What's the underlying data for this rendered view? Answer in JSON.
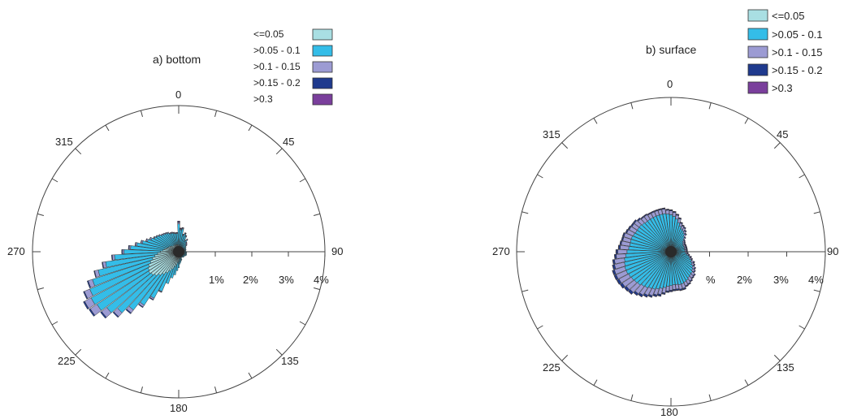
{
  "colors": {
    "c1": "#a9dfe3",
    "c2": "#34bde8",
    "c3": "#9c9bd3",
    "c4": "#1f3a8e",
    "c5": "#7a3f9c",
    "axis": "#444444",
    "center": "#2a2a2a"
  },
  "chart_data": [
    {
      "type": "polar-bar",
      "title": "a) bottom",
      "angle_labels": [
        "0",
        "45",
        "90",
        "135",
        "180",
        "225",
        "270",
        "315"
      ],
      "radial_labels": [
        "1%",
        "2%",
        "3%",
        "4%"
      ],
      "rmax_percent": 4,
      "bin_width_deg": 5,
      "legend": [
        {
          "label": "<=0.05",
          "color": "#a9dfe3"
        },
        {
          "label": ">0.05 - 0.1",
          "color": "#34bde8"
        },
        {
          "label": ">0.1 - 0.15",
          "color": "#9c9bd3"
        },
        {
          "label": ">0.15 - 0.2",
          "color": "#1f3a8e"
        },
        {
          "label": ">0.3",
          "color": "#7a3f9c"
        }
      ],
      "directions_deg": [
        0,
        5,
        10,
        15,
        20,
        25,
        30,
        35,
        40,
        45,
        50,
        55,
        60,
        65,
        70,
        75,
        80,
        85,
        90,
        95,
        100,
        105,
        110,
        115,
        120,
        125,
        130,
        135,
        140,
        145,
        150,
        155,
        160,
        165,
        170,
        175,
        180,
        185,
        190,
        195,
        200,
        205,
        210,
        215,
        220,
        225,
        230,
        235,
        240,
        245,
        250,
        255,
        260,
        265,
        270,
        275,
        280,
        285,
        290,
        295,
        300,
        305,
        310,
        315,
        320,
        325,
        330,
        335,
        340,
        345,
        350,
        355
      ],
      "series": [
        {
          "name": "<=0.05",
          "values": [
            0.2,
            0.16,
            0.15,
            0.14,
            0.13,
            0.12,
            0.11,
            0.1,
            0.1,
            0.1,
            0.1,
            0.09,
            0.09,
            0.09,
            0.09,
            0.09,
            0.09,
            0.1,
            0.1,
            0.12,
            0.12,
            0.12,
            0.13,
            0.13,
            0.12,
            0.12,
            0.12,
            0.12,
            0.12,
            0.12,
            0.12,
            0.12,
            0.14,
            0.16,
            0.18,
            0.2,
            0.26,
            0.3,
            0.36,
            0.42,
            0.5,
            0.58,
            0.66,
            0.74,
            0.82,
            0.9,
            0.95,
            0.98,
            0.95,
            0.9,
            0.82,
            0.74,
            0.66,
            0.58,
            0.5,
            0.44,
            0.4,
            0.36,
            0.32,
            0.3,
            0.28,
            0.26,
            0.24,
            0.22,
            0.22,
            0.22,
            0.22,
            0.2,
            0.2,
            0.2,
            0.2,
            0.2
          ]
        },
        {
          "name": ">0.05 - 0.1",
          "values": [
            0.56,
            0.44,
            0.48,
            0.32,
            0.38,
            0.33,
            0.22,
            0.28,
            0.2,
            0.18,
            0.15,
            0.15,
            0.14,
            0.12,
            0.12,
            0.12,
            0.1,
            0.1,
            0.1,
            0.1,
            0.1,
            0.1,
            0.1,
            0.1,
            0.1,
            0.08,
            0.08,
            0.08,
            0.08,
            0.06,
            0.06,
            0.06,
            0.1,
            0.1,
            0.12,
            0.14,
            0.18,
            0.22,
            0.28,
            0.32,
            0.42,
            0.6,
            0.78,
            1.0,
            1.2,
            1.38,
            1.54,
            1.68,
            1.76,
            1.74,
            1.66,
            1.52,
            1.36,
            1.18,
            1.0,
            0.88,
            0.76,
            0.66,
            0.58,
            0.52,
            0.48,
            0.46,
            0.44,
            0.42,
            0.4,
            0.38,
            0.36,
            0.34,
            0.34,
            0.32,
            0.3,
            0.3
          ]
        },
        {
          "name": ">0.1 - 0.15",
          "values": [
            0.04,
            0.02,
            0.02,
            0.02,
            0.02,
            0.02,
            0.02,
            0.02,
            0.02,
            0.02,
            0.02,
            0.0,
            0.0,
            0.0,
            0.0,
            0.0,
            0.0,
            0.0,
            0.0,
            0.0,
            0.0,
            0.0,
            0.0,
            0.0,
            0.0,
            0.0,
            0.0,
            0.0,
            0.0,
            0.0,
            0.0,
            0.0,
            0.0,
            0.0,
            0.0,
            0.0,
            0.0,
            0.0,
            0.0,
            0.0,
            0.0,
            0.02,
            0.04,
            0.06,
            0.1,
            0.14,
            0.18,
            0.22,
            0.2,
            0.16,
            0.12,
            0.1,
            0.08,
            0.06,
            0.04,
            0.04,
            0.04,
            0.04,
            0.04,
            0.04,
            0.02,
            0.02,
            0.02,
            0.02,
            0.02,
            0.02,
            0.02,
            0.02,
            0.02,
            0.02,
            0.02,
            0.02
          ]
        },
        {
          "name": ">0.15 - 0.2",
          "values": [
            0.02,
            0.02,
            0.01,
            0.01,
            0.01,
            0.01,
            0.01,
            0.01,
            0.01,
            0.01,
            0.01,
            0.0,
            0.0,
            0.0,
            0.0,
            0.0,
            0.0,
            0.0,
            0.0,
            0.0,
            0.0,
            0.0,
            0.0,
            0.0,
            0.0,
            0.0,
            0.0,
            0.0,
            0.0,
            0.0,
            0.0,
            0.0,
            0.0,
            0.0,
            0.0,
            0.0,
            0.0,
            0.0,
            0.0,
            0.0,
            0.0,
            0.01,
            0.02,
            0.02,
            0.03,
            0.03,
            0.04,
            0.04,
            0.04,
            0.03,
            0.03,
            0.02,
            0.02,
            0.02,
            0.02,
            0.02,
            0.01,
            0.01,
            0.01,
            0.01,
            0.01,
            0.01,
            0.01,
            0.01,
            0.01,
            0.01,
            0.01,
            0.01,
            0.01,
            0.01,
            0.01,
            0.01
          ]
        },
        {
          "name": ">0.3",
          "values": [
            0.02,
            0.01,
            0.01,
            0.01,
            0.01,
            0.01,
            0.01,
            0.01,
            0.01,
            0.01,
            0.01,
            0.0,
            0.0,
            0.0,
            0.0,
            0.0,
            0.0,
            0.0,
            0.0,
            0.0,
            0.0,
            0.0,
            0.0,
            0.0,
            0.0,
            0.0,
            0.0,
            0.0,
            0.0,
            0.0,
            0.0,
            0.0,
            0.0,
            0.0,
            0.0,
            0.0,
            0.0,
            0.0,
            0.0,
            0.0,
            0.0,
            0.0,
            0.0,
            0.0,
            0.0,
            0.0,
            0.0,
            0.0,
            0.0,
            0.0,
            0.0,
            0.0,
            0.0,
            0.0,
            0.0,
            0.0,
            0.0,
            0.0,
            0.0,
            0.0,
            0.0,
            0.0,
            0.0,
            0.0,
            0.0,
            0.0,
            0.0,
            0.0,
            0.0,
            0.0,
            0.0,
            0.0
          ]
        }
      ]
    },
    {
      "type": "polar-bar",
      "title": "b) surface",
      "angle_labels": [
        "0",
        "45",
        "90",
        "135",
        "180",
        "225",
        "270",
        "315"
      ],
      "radial_labels": [
        "%",
        "2%",
        "3%",
        "4%"
      ],
      "rmax_percent": 4,
      "bin_width_deg": 5,
      "legend": [
        {
          "label": "<=0.05",
          "color": "#a9dfe3"
        },
        {
          "label": ">0.05 - 0.1",
          "color": "#34bde8"
        },
        {
          "label": ">0.1 - 0.15",
          "color": "#9c9bd3"
        },
        {
          "label": ">0.15 - 0.2",
          "color": "#1f3a8e"
        },
        {
          "label": ">0.3",
          "color": "#7a3f9c"
        }
      ],
      "directions_deg": [
        0,
        5,
        10,
        15,
        20,
        25,
        30,
        35,
        40,
        45,
        50,
        55,
        60,
        65,
        70,
        75,
        80,
        85,
        90,
        95,
        100,
        105,
        110,
        115,
        120,
        125,
        130,
        135,
        140,
        145,
        150,
        155,
        160,
        165,
        170,
        175,
        180,
        185,
        190,
        195,
        200,
        205,
        210,
        215,
        220,
        225,
        230,
        235,
        240,
        245,
        250,
        255,
        260,
        265,
        270,
        275,
        280,
        285,
        290,
        295,
        300,
        305,
        310,
        315,
        320,
        325,
        330,
        335,
        340,
        345,
        350,
        355
      ],
      "series": [
        {
          "name": "<=0.05",
          "values": [
            0.1,
            0.1,
            0.1,
            0.1,
            0.1,
            0.1,
            0.1,
            0.1,
            0.1,
            0.1,
            0.1,
            0.1,
            0.1,
            0.1,
            0.1,
            0.1,
            0.1,
            0.1,
            0.1,
            0.1,
            0.1,
            0.1,
            0.1,
            0.1,
            0.1,
            0.1,
            0.1,
            0.1,
            0.1,
            0.1,
            0.12,
            0.12,
            0.12,
            0.12,
            0.12,
            0.12,
            0.12,
            0.12,
            0.12,
            0.12,
            0.12,
            0.12,
            0.12,
            0.12,
            0.12,
            0.12,
            0.12,
            0.12,
            0.12,
            0.12,
            0.12,
            0.12,
            0.12,
            0.12,
            0.12,
            0.12,
            0.12,
            0.12,
            0.12,
            0.12,
            0.12,
            0.12,
            0.12,
            0.12,
            0.12,
            0.12,
            0.12,
            0.12,
            0.12,
            0.12,
            0.12,
            0.12
          ]
        },
        {
          "name": ">0.05 - 0.1",
          "values": [
            0.86,
            0.82,
            0.76,
            0.68,
            0.6,
            0.55,
            0.52,
            0.48,
            0.42,
            0.36,
            0.3,
            0.28,
            0.26,
            0.26,
            0.26,
            0.26,
            0.26,
            0.26,
            0.26,
            0.28,
            0.32,
            0.38,
            0.42,
            0.48,
            0.52,
            0.58,
            0.62,
            0.66,
            0.68,
            0.7,
            0.72,
            0.74,
            0.76,
            0.76,
            0.74,
            0.74,
            0.76,
            0.78,
            0.82,
            0.86,
            0.9,
            0.94,
            0.96,
            1.0,
            1.02,
            1.06,
            1.08,
            1.1,
            1.12,
            1.14,
            1.14,
            1.12,
            1.1,
            1.06,
            1.02,
            0.98,
            0.96,
            0.96,
            0.96,
            0.94,
            0.92,
            0.92,
            0.92,
            0.9,
            0.88,
            0.88,
            0.88,
            0.88,
            0.88,
            0.88,
            0.88,
            0.86
          ]
        },
        {
          "name": ">0.1 - 0.15",
          "values": [
            0.1,
            0.1,
            0.1,
            0.1,
            0.08,
            0.08,
            0.08,
            0.06,
            0.06,
            0.04,
            0.04,
            0.04,
            0.04,
            0.04,
            0.04,
            0.04,
            0.04,
            0.04,
            0.04,
            0.04,
            0.04,
            0.04,
            0.04,
            0.06,
            0.06,
            0.06,
            0.06,
            0.08,
            0.08,
            0.1,
            0.1,
            0.1,
            0.12,
            0.12,
            0.12,
            0.12,
            0.12,
            0.12,
            0.14,
            0.16,
            0.16,
            0.18,
            0.2,
            0.22,
            0.24,
            0.26,
            0.26,
            0.28,
            0.28,
            0.28,
            0.28,
            0.26,
            0.26,
            0.24,
            0.24,
            0.22,
            0.22,
            0.2,
            0.2,
            0.18,
            0.18,
            0.16,
            0.16,
            0.14,
            0.14,
            0.14,
            0.12,
            0.12,
            0.12,
            0.12,
            0.12,
            0.1
          ]
        },
        {
          "name": ">0.15 - 0.2",
          "values": [
            0.02,
            0.02,
            0.02,
            0.02,
            0.02,
            0.02,
            0.02,
            0.02,
            0.02,
            0.02,
            0.02,
            0.02,
            0.02,
            0.02,
            0.02,
            0.02,
            0.02,
            0.02,
            0.02,
            0.02,
            0.02,
            0.02,
            0.02,
            0.02,
            0.02,
            0.02,
            0.02,
            0.02,
            0.02,
            0.02,
            0.02,
            0.02,
            0.03,
            0.03,
            0.03,
            0.03,
            0.03,
            0.03,
            0.03,
            0.04,
            0.04,
            0.04,
            0.05,
            0.05,
            0.05,
            0.06,
            0.06,
            0.06,
            0.06,
            0.05,
            0.05,
            0.05,
            0.04,
            0.04,
            0.04,
            0.04,
            0.03,
            0.03,
            0.03,
            0.03,
            0.03,
            0.03,
            0.03,
            0.03,
            0.02,
            0.02,
            0.02,
            0.02,
            0.02,
            0.02,
            0.02,
            0.02
          ]
        },
        {
          "name": ">0.3",
          "values": [
            0.01,
            0.01,
            0.01,
            0.01,
            0.01,
            0.01,
            0.01,
            0.01,
            0.01,
            0.01,
            0.01,
            0.01,
            0.01,
            0.01,
            0.01,
            0.01,
            0.01,
            0.01,
            0.01,
            0.01,
            0.01,
            0.01,
            0.01,
            0.01,
            0.01,
            0.01,
            0.01,
            0.01,
            0.01,
            0.01,
            0.01,
            0.01,
            0.01,
            0.01,
            0.01,
            0.01,
            0.01,
            0.01,
            0.01,
            0.01,
            0.01,
            0.01,
            0.01,
            0.01,
            0.01,
            0.01,
            0.01,
            0.01,
            0.01,
            0.01,
            0.01,
            0.01,
            0.01,
            0.01,
            0.01,
            0.01,
            0.01,
            0.01,
            0.01,
            0.01,
            0.01,
            0.01,
            0.01,
            0.01,
            0.01,
            0.01,
            0.01,
            0.01,
            0.01,
            0.01,
            0.01,
            0.01
          ]
        }
      ]
    }
  ]
}
